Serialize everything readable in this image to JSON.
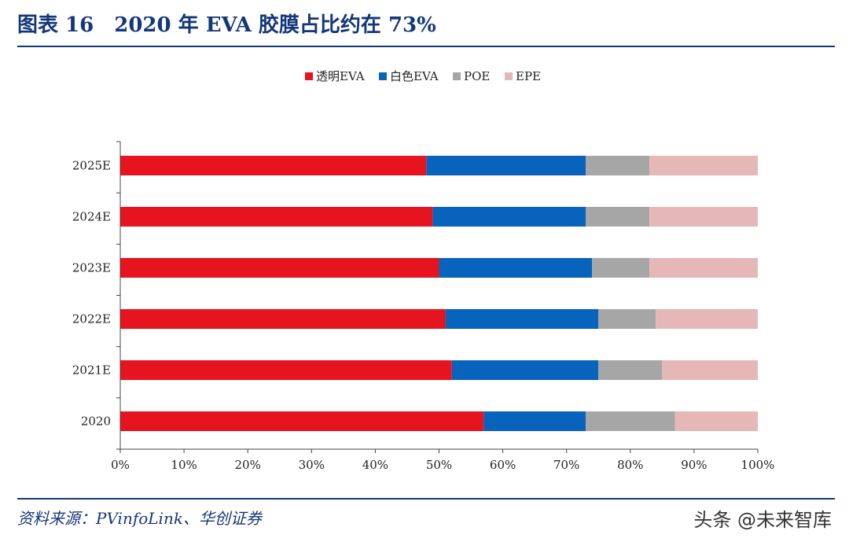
{
  "header": {
    "figure_number": "图表 16",
    "title": "2020 年 EVA 胶膜占比约在 73%"
  },
  "footer": {
    "source": "资料来源：PVinfoLink、华创证券",
    "watermark": "头条 @未来智库"
  },
  "chart_data": {
    "type": "bar",
    "orientation": "horizontal",
    "stacked": true,
    "categories": [
      "2025E",
      "2024E",
      "2023E",
      "2022E",
      "2021E",
      "2020"
    ],
    "series": [
      {
        "name": "透明EVA",
        "color": "#e5141e",
        "values": [
          48,
          49,
          50,
          51,
          52,
          57
        ]
      },
      {
        "name": "白色EVA",
        "color": "#0763bb",
        "values": [
          25,
          24,
          24,
          24,
          23,
          16
        ]
      },
      {
        "name": "POE",
        "color": "#a6a6a6",
        "values": [
          10,
          10,
          9,
          9,
          10,
          14
        ]
      },
      {
        "name": "EPE",
        "color": "#e5b8b7",
        "values": [
          17,
          17,
          17,
          16,
          15,
          13
        ]
      }
    ],
    "xlim": [
      0,
      100
    ],
    "xticks": [
      "0%",
      "10%",
      "20%",
      "30%",
      "40%",
      "50%",
      "60%",
      "70%",
      "80%",
      "90%",
      "100%"
    ],
    "legend_position": "top-center",
    "grid": false
  }
}
